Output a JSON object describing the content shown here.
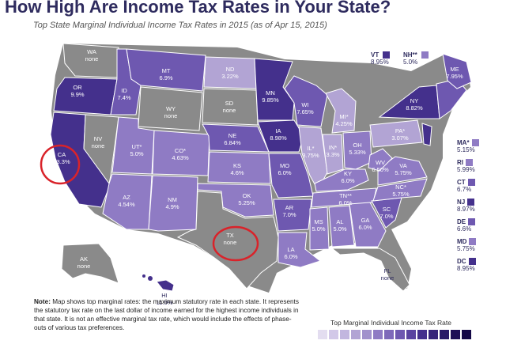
{
  "title": "How High Are Income Tax Rates in Your State?",
  "subtitle": "Top State Marginal  Individual Income Tax Rates in 2015 (as of Apr 15, 2015)",
  "colors": {
    "none": "#8a8a8a",
    "low": "#b2a4d4",
    "mid": "#8f7bc4",
    "high": "#6e58b0",
    "top": "#44308c",
    "highlight": "#d9232a",
    "title": "#2e2b5e"
  },
  "states": {
    "WA": {
      "abbr": "WA",
      "rate": "none"
    },
    "OR": {
      "abbr": "OR",
      "rate": "9.9%"
    },
    "CA": {
      "abbr": "CA",
      "rate": "13.3%"
    },
    "NV": {
      "abbr": "NV",
      "rate": "none"
    },
    "ID": {
      "abbr": "ID",
      "rate": "7.4%"
    },
    "MT": {
      "abbr": "MT",
      "rate": "6.9%"
    },
    "WY": {
      "abbr": "WY",
      "rate": "none"
    },
    "UT": {
      "abbr": "UT*",
      "rate": "5.0%"
    },
    "AZ": {
      "abbr": "AZ",
      "rate": "4.54%"
    },
    "CO": {
      "abbr": "CO*",
      "rate": "4.63%"
    },
    "NM": {
      "abbr": "NM",
      "rate": "4.9%"
    },
    "ND": {
      "abbr": "ND",
      "rate": "3.22%"
    },
    "SD": {
      "abbr": "SD",
      "rate": "none"
    },
    "NE": {
      "abbr": "NE",
      "rate": "6.84%"
    },
    "KS": {
      "abbr": "KS",
      "rate": "4.6%"
    },
    "OK": {
      "abbr": "OK",
      "rate": "5.25%"
    },
    "TX": {
      "abbr": "TX",
      "rate": "none"
    },
    "MN": {
      "abbr": "MN",
      "rate": "9.85%"
    },
    "IA": {
      "abbr": "IA",
      "rate": "8.98%"
    },
    "MO": {
      "abbr": "MO",
      "rate": "6.0%"
    },
    "AR": {
      "abbr": "AR",
      "rate": "7.0%"
    },
    "LA": {
      "abbr": "LA",
      "rate": "6.0%"
    },
    "WI": {
      "abbr": "WI",
      "rate": "7.65%"
    },
    "IL": {
      "abbr": "IL*",
      "rate": "3.75%"
    },
    "MI": {
      "abbr": "MI*",
      "rate": "4.25%"
    },
    "IN": {
      "abbr": "IN*",
      "rate": "3.3%"
    },
    "OH": {
      "abbr": "OH",
      "rate": "5.33%"
    },
    "KY": {
      "abbr": "KY",
      "rate": "6.0%"
    },
    "TN": {
      "abbr": "TN**",
      "rate": "6.0%"
    },
    "MS": {
      "abbr": "MS",
      "rate": "5.0%"
    },
    "AL": {
      "abbr": "AL",
      "rate": "5.0%"
    },
    "GA": {
      "abbr": "GA",
      "rate": "6.0%"
    },
    "FL": {
      "abbr": "FL",
      "rate": "none"
    },
    "SC": {
      "abbr": "SC",
      "rate": "7.0%"
    },
    "NC": {
      "abbr": "NC*",
      "rate": "5.75%"
    },
    "VA": {
      "abbr": "VA",
      "rate": "5.75%"
    },
    "WV": {
      "abbr": "WV",
      "rate": "6.50%"
    },
    "PA": {
      "abbr": "PA*",
      "rate": "3.07%"
    },
    "NY": {
      "abbr": "NY",
      "rate": "8.82%"
    },
    "ME": {
      "abbr": "ME",
      "rate": "7.95%"
    },
    "AK": {
      "abbr": "AK",
      "rate": "none"
    },
    "HI": {
      "abbr": "HI",
      "rate": "11.0%"
    }
  },
  "small_states": {
    "VT": {
      "abbr": "VT",
      "rate": "8.95%"
    },
    "NH": {
      "abbr": "NH**",
      "rate": "5.0%"
    },
    "MA": {
      "abbr": "MA*",
      "rate": "5.15%"
    },
    "RI": {
      "abbr": "RI",
      "rate": "5.99%"
    },
    "CT": {
      "abbr": "CT",
      "rate": "6.7%"
    },
    "NJ": {
      "abbr": "NJ",
      "rate": "8.97%"
    },
    "DE": {
      "abbr": "DE",
      "rate": "6.6%"
    },
    "MD": {
      "abbr": "MD",
      "rate": "5.75%"
    },
    "DC": {
      "abbr": "DC",
      "rate": "8.95%"
    }
  },
  "note": {
    "bold": "Note:",
    "text": "Map shows top marginal rates: the maximum statutory rate in each state. It represents the statutory tax rate on the last dollar of income earned for the highest income individuals in that state. It is not an effective marginal tax rate, which would include the effects of phase-outs of various tax preferences."
  },
  "legend": {
    "title": "Top Marginal Individual Income Tax Rate"
  }
}
